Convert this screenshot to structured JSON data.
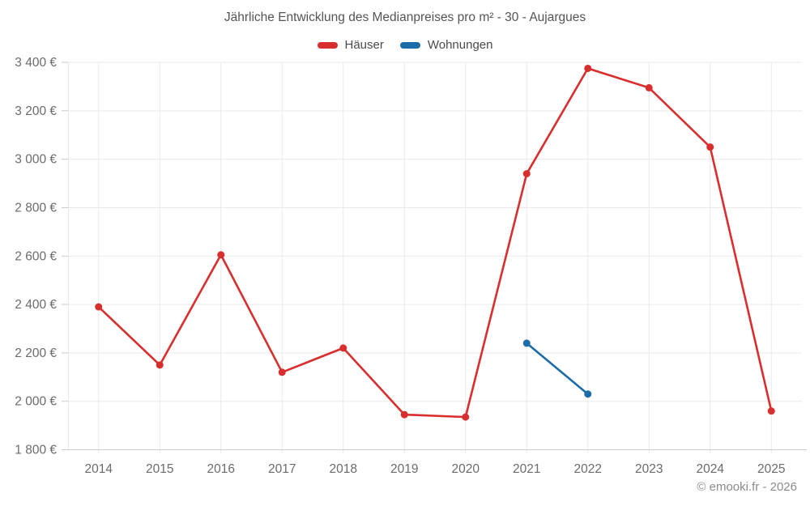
{
  "page": {
    "footer": "© emooki.fr - 2026"
  },
  "chart_data": {
    "type": "line",
    "title": "Jährliche Entwicklung des Medianpreises pro m² - 30 - Aujargues",
    "categories": [
      "2014",
      "2015",
      "2016",
      "2017",
      "2018",
      "2019",
      "2020",
      "2021",
      "2022",
      "2023",
      "2024",
      "2025"
    ],
    "series": [
      {
        "name": "Häuser",
        "color": "#d92e2e",
        "values": [
          2390,
          2150,
          2605,
          2120,
          2220,
          1945,
          1935,
          2940,
          3375,
          3295,
          3050,
          1960
        ]
      },
      {
        "name": "Wohnungen",
        "color": "#1b6ca8",
        "values": [
          null,
          null,
          null,
          null,
          null,
          null,
          null,
          2240,
          2030,
          null,
          null,
          null
        ]
      }
    ],
    "ylim": [
      1800,
      3400
    ],
    "y_ticks": [
      {
        "value": 1800,
        "label": "1 800 €"
      },
      {
        "value": 2000,
        "label": "2 000 €"
      },
      {
        "value": 2200,
        "label": "2 200 €"
      },
      {
        "value": 2400,
        "label": "2 400 €"
      },
      {
        "value": 2600,
        "label": "2 600 €"
      },
      {
        "value": 2800,
        "label": "2 800 €"
      },
      {
        "value": 3000,
        "label": "3 000 €"
      },
      {
        "value": 3200,
        "label": "3 200 €"
      },
      {
        "value": 3400,
        "label": "3 400 €"
      }
    ],
    "grid": true,
    "legend_position": "top",
    "colors": {
      "grid_line": "#e9e9e9",
      "axis_line": "#cccccc",
      "tick_mark": "#c9c9c9",
      "tick_text": "#6b6b6b"
    }
  }
}
